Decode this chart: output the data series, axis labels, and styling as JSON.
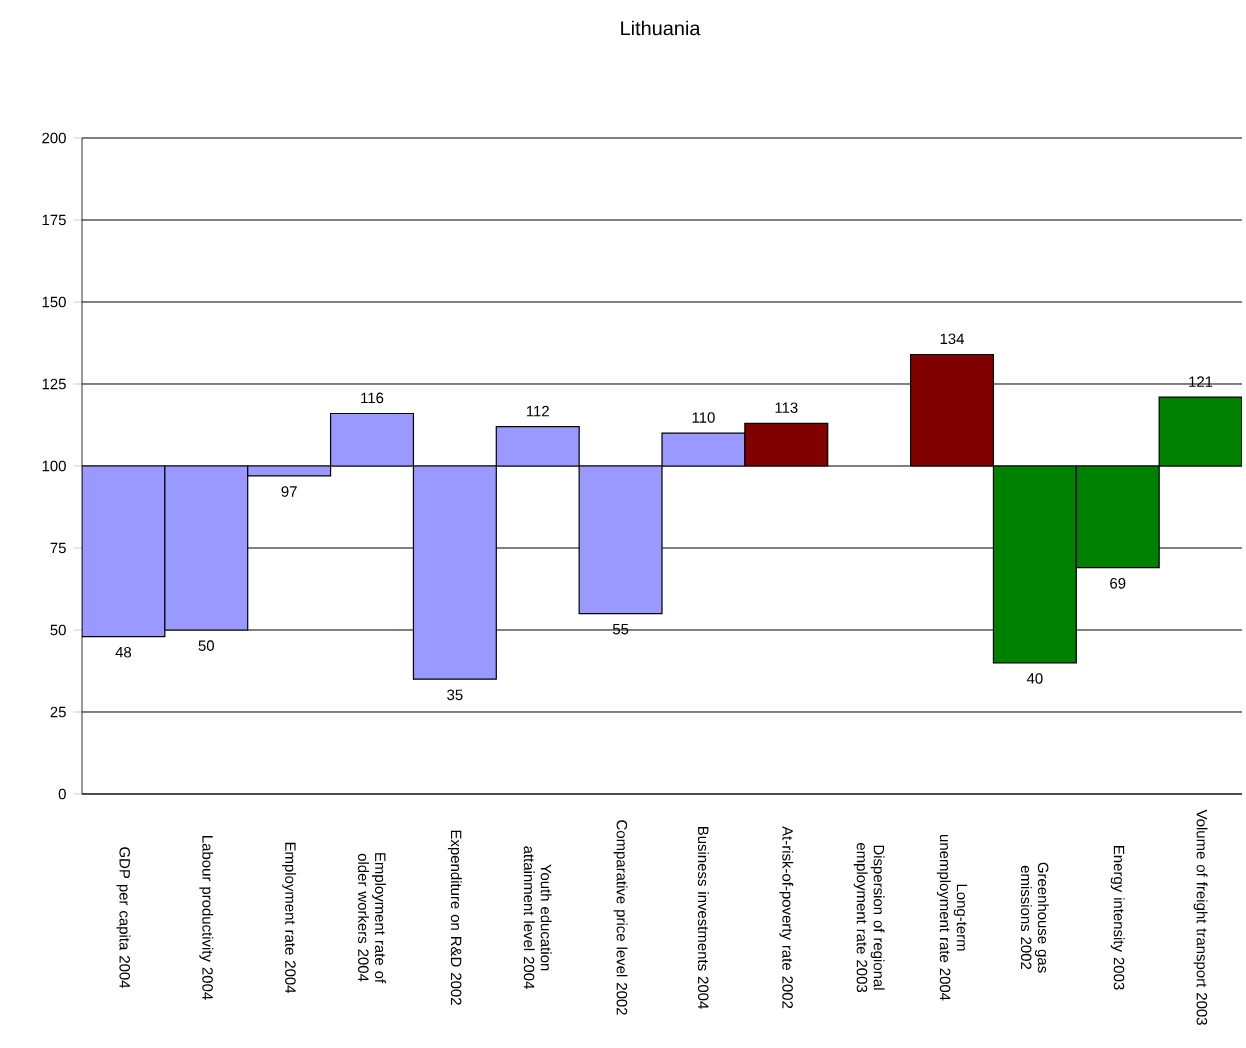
{
  "chart_data": {
    "type": "bar",
    "title": "Lithuania",
    "categories": [
      "GDP per capita 2004",
      "Labour productivity 2004",
      "Employment rate 2004",
      "Employment rate of older workers 2004",
      "Expenditure on R&D 2002",
      "Youth education attainment level 2004",
      "Comparative price level 2002",
      "Business investments 2004",
      "At-risk-of-poverty rate 2002",
      "Dispersion of regional employment rate 2003",
      "Long-term unemployment rate 2004",
      "Greenhouse gas emissions 2002",
      "Energy intensity 2003",
      "Volume of freight transport 2003"
    ],
    "values": [
      -52,
      -50,
      -3,
      16,
      -65,
      12,
      -45,
      10,
      13,
      null,
      34,
      -60,
      -31,
      21
    ],
    "base": [
      100,
      100,
      100,
      100,
      100,
      100,
      100,
      100,
      100,
      null,
      100,
      100,
      100,
      100
    ],
    "colors": [
      "#9999ff",
      "#9999ff",
      "#9999ff",
      "#9999ff",
      "#9999ff",
      "#9999ff",
      "#9999ff",
      "#9999ff",
      "#800000",
      "#800000",
      "#800000",
      "#008000",
      "#008000",
      "#008000"
    ],
    "value_labels": [
      "48",
      "50",
      "97",
      "116",
      "35",
      "112",
      "55",
      "110",
      "113",
      null,
      "134",
      "40",
      "69",
      "121"
    ],
    "ylim": [
      0,
      200
    ],
    "yticks": [
      0,
      25,
      50,
      75,
      100,
      125,
      150,
      175,
      200
    ],
    "grid": "y"
  }
}
